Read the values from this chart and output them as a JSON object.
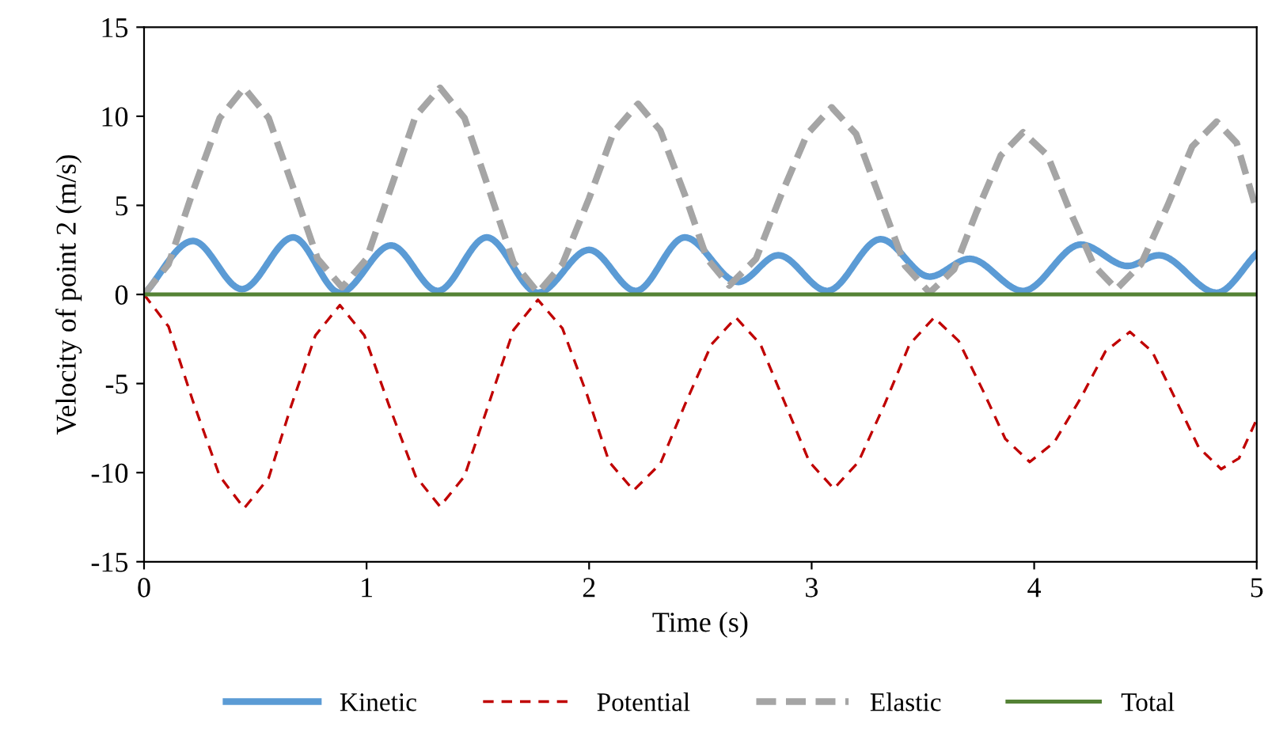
{
  "chart_data": {
    "type": "line",
    "xlabel": "Time (s)",
    "ylabel": "Velocity of point 2 (m/s)",
    "xlim": [
      0,
      5
    ],
    "xticks": [
      0,
      1,
      2,
      3,
      4,
      5
    ],
    "ylim": [
      -15,
      15
    ],
    "yticks": [
      -15,
      -10,
      -5,
      0,
      5,
      10,
      15
    ],
    "grid": false,
    "legend": "bottom",
    "marker": "none",
    "series": [
      {
        "name": "Kinetic",
        "color": "#5b9bd5",
        "line_style": "solid",
        "x": [
          0,
          0.22,
          0.44,
          0.67,
          0.88,
          1.11,
          1.32,
          1.54,
          1.77,
          2.0,
          2.21,
          2.43,
          2.67,
          2.85,
          3.07,
          3.31,
          3.53,
          3.71,
          3.95,
          4.21,
          4.42,
          4.56,
          4.82,
          5.0
        ],
        "values": [
          0,
          3.0,
          0.3,
          3.2,
          0.1,
          2.75,
          0.2,
          3.2,
          0.1,
          2.5,
          0.2,
          3.2,
          0.7,
          2.2,
          0.2,
          3.1,
          1.0,
          2.0,
          0.2,
          2.8,
          1.6,
          2.2,
          0.1,
          2.3
        ]
      },
      {
        "name": "Potential",
        "color": "#c00000",
        "line_style": "dashed",
        "x": [
          0,
          0.11,
          0.22,
          0.34,
          0.45,
          0.56,
          0.66,
          0.77,
          0.88,
          0.99,
          1.1,
          1.22,
          1.33,
          1.44,
          1.55,
          1.66,
          1.77,
          1.88,
          1.99,
          2.09,
          2.2,
          2.32,
          2.43,
          2.55,
          2.66,
          2.77,
          2.88,
          2.99,
          3.1,
          3.21,
          3.33,
          3.44,
          3.55,
          3.66,
          3.77,
          3.87,
          3.98,
          4.09,
          4.21,
          4.32,
          4.43,
          4.53,
          4.64,
          4.74,
          4.84,
          4.92,
          5.0
        ],
        "values": [
          0,
          -1.8,
          -6,
          -10.2,
          -12,
          -10.3,
          -6.3,
          -2.3,
          -0.6,
          -2.3,
          -6.2,
          -10.2,
          -11.9,
          -10.2,
          -6.1,
          -2,
          -0.3,
          -1.9,
          -5.6,
          -9.4,
          -11,
          -9.5,
          -6.2,
          -2.8,
          -1.3,
          -2.8,
          -6.1,
          -9.4,
          -10.9,
          -9.4,
          -6.1,
          -2.8,
          -1.3,
          -2.6,
          -5.4,
          -8.1,
          -9.4,
          -8.3,
          -5.8,
          -3.2,
          -2.1,
          -3.2,
          -6,
          -8.6,
          -9.8,
          -9.2,
          -7
        ]
      },
      {
        "name": "Elastic",
        "color": "#a5a5a5",
        "line_style": "dashed",
        "x": [
          0,
          0.11,
          0.22,
          0.34,
          0.45,
          0.56,
          0.67,
          0.78,
          0.89,
          1.0,
          1.11,
          1.22,
          1.33,
          1.44,
          1.55,
          1.66,
          1.77,
          1.88,
          2.0,
          2.11,
          2.22,
          2.32,
          2.43,
          2.53,
          2.63,
          2.75,
          2.86,
          2.98,
          3.09,
          3.2,
          3.31,
          3.42,
          3.53,
          3.64,
          3.74,
          3.85,
          3.95,
          4.06,
          4.16,
          4.27,
          4.37,
          4.48,
          4.6,
          4.71,
          4.82,
          4.91,
          5.0
        ],
        "values": [
          0,
          1.7,
          5.8,
          9.9,
          11.6,
          9.9,
          6,
          2,
          0.4,
          2,
          6,
          10,
          11.6,
          9.9,
          5.9,
          1.8,
          0.1,
          1.7,
          5.4,
          9.1,
          10.7,
          9.2,
          5.6,
          2,
          0.5,
          2,
          5.5,
          9,
          10.5,
          9,
          5.3,
          1.6,
          0.1,
          1.4,
          4.6,
          7.8,
          9.1,
          7.8,
          4.7,
          1.6,
          0.3,
          1.7,
          5,
          8.3,
          9.7,
          8.5,
          4.7
        ]
      },
      {
        "name": "Total",
        "color": "#548235",
        "line_style": "solid",
        "x": [
          0,
          5.0
        ],
        "values": [
          0,
          0
        ]
      }
    ]
  }
}
